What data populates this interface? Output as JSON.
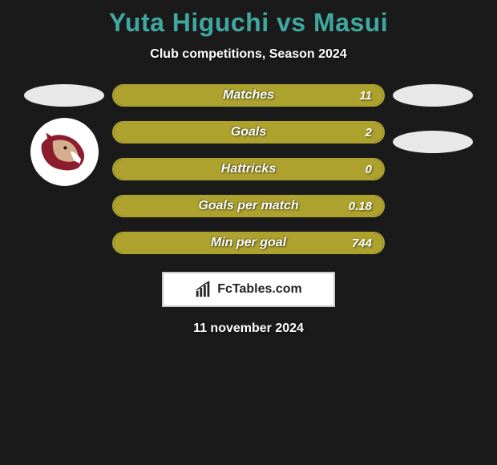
{
  "title": "Yuta Higuchi vs Masui",
  "subtitle": "Club competitions, Season 2024",
  "date": "11 november 2024",
  "brand": "FcTables.com",
  "colors": {
    "background": "#1a1a1a",
    "title": "#3fa8a0",
    "text": "#ffffff",
    "bar_fill": "#aea22e",
    "bar_border": "#aea22e",
    "ellipse": "#e8e8e8",
    "avatar_bg": "#ffffff",
    "brand_border": "#c8c8c8",
    "brand_bg": "#ffffff"
  },
  "stats": [
    {
      "label": "Matches",
      "value": "11",
      "fill_pct": 100
    },
    {
      "label": "Goals",
      "value": "2",
      "fill_pct": 100
    },
    {
      "label": "Hattricks",
      "value": "0",
      "fill_pct": 100
    },
    {
      "label": "Goals per match",
      "value": "0.18",
      "fill_pct": 100
    },
    {
      "label": "Min per goal",
      "value": "744",
      "fill_pct": 100
    }
  ],
  "left_player": {
    "has_ellipse": true,
    "has_avatar": true
  },
  "right_player": {
    "has_ellipse": true,
    "has_small_ellipse": true
  }
}
